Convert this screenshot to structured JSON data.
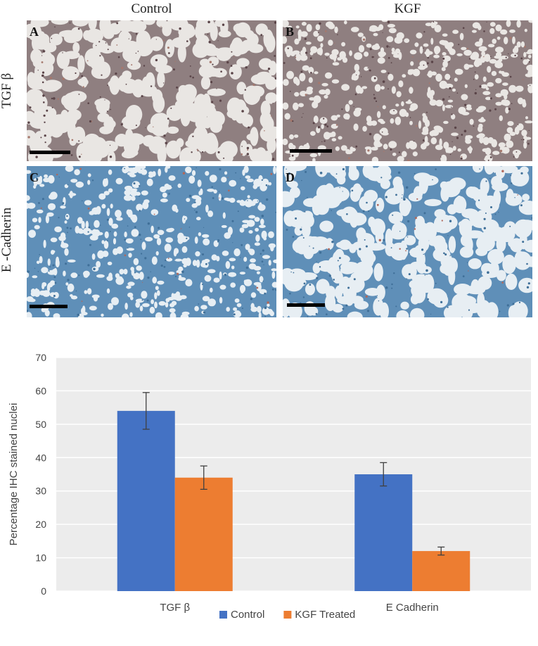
{
  "figure": {
    "columns": [
      "Control",
      "KGF"
    ],
    "rows": [
      "TGF β",
      "E -Cadherin"
    ],
    "panels": [
      {
        "letter": "A",
        "stain": "brown",
        "tissue": "sparse"
      },
      {
        "letter": "B",
        "stain": "brown",
        "tissue": "dense"
      },
      {
        "letter": "C",
        "stain": "blue",
        "tissue": "dense"
      },
      {
        "letter": "D",
        "stain": "blue",
        "tissue": "sparse"
      }
    ]
  },
  "chart_data": {
    "type": "bar",
    "title": "",
    "xlabel": "",
    "ylabel": "Percentage IHC stained nuclei",
    "categories": [
      "TGF β",
      "E Cadherin"
    ],
    "ylim": [
      0,
      70
    ],
    "yticks": [
      0,
      10,
      20,
      30,
      40,
      50,
      60,
      70
    ],
    "grid": true,
    "legend_position": "bottom",
    "series": [
      {
        "name": "Control",
        "color": "#4472c4",
        "values": [
          54,
          35
        ],
        "errors": [
          5.5,
          3.5
        ]
      },
      {
        "name": "KGF Treated",
        "color": "#ed7d31",
        "values": [
          34,
          12
        ],
        "errors": [
          3.5,
          1.2
        ]
      }
    ]
  },
  "colors": {
    "plot_background": "#ececec",
    "gridline": "#ffffff",
    "error_bar": "#404040"
  }
}
